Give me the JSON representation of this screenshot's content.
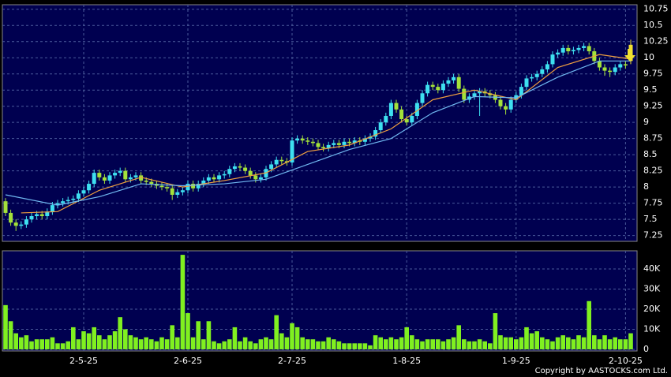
{
  "chart_data": {
    "type": "candlestick",
    "up_color": "#3ee0f0",
    "down_color": "#a4e23a",
    "last_color": "#f0e030",
    "ylim": [
      7.16,
      10.82
    ],
    "yticks": [
      7.25,
      7.5,
      7.75,
      8,
      8.25,
      8.5,
      8.75,
      9,
      9.25,
      9.5,
      9.75,
      10,
      10.25,
      10.5,
      10.75
    ],
    "date_ticks": [
      {
        "index": 15,
        "label": "2-5-25"
      },
      {
        "index": 35,
        "label": "2-6-25"
      },
      {
        "index": 55,
        "label": "2-7-25"
      },
      {
        "index": 77,
        "label": "1-8-25"
      },
      {
        "index": 98,
        "label": "1-9-25"
      },
      {
        "index": 119,
        "label": "2-10-25"
      }
    ],
    "open": [
      7.78,
      7.6,
      7.45,
      7.4,
      7.42,
      7.5,
      7.55,
      7.58,
      7.55,
      7.62,
      7.72,
      7.75,
      7.78,
      7.8,
      7.82,
      7.9,
      7.95,
      8.05,
      8.22,
      8.15,
      8.1,
      8.18,
      8.22,
      8.25,
      8.12,
      8.15,
      8.18,
      8.1,
      8.08,
      8.05,
      8.02,
      8.0,
      7.98,
      7.88,
      7.92,
      7.95,
      8.05,
      7.98,
      8.05,
      8.1,
      8.15,
      8.12,
      8.18,
      8.2,
      8.28,
      8.32,
      8.3,
      8.25,
      8.18,
      8.12,
      8.15,
      8.28,
      8.35,
      8.42,
      8.4,
      8.38,
      8.72,
      8.75,
      8.72,
      8.7,
      8.68,
      8.62,
      8.6,
      8.65,
      8.68,
      8.65,
      8.7,
      8.68,
      8.72,
      8.7,
      8.75,
      8.78,
      8.88,
      9.0,
      9.1,
      9.3,
      9.2,
      9.05,
      9.0,
      9.1,
      9.3,
      9.45,
      9.58,
      9.55,
      9.5,
      9.6,
      9.65,
      9.7,
      9.52,
      9.35,
      9.4,
      9.45,
      9.48,
      9.45,
      9.42,
      9.35,
      9.25,
      9.2,
      9.35,
      9.42,
      9.55,
      9.68,
      9.7,
      9.75,
      9.82,
      9.9,
      10.05,
      10.08,
      10.15,
      10.1,
      10.12,
      10.15,
      10.18,
      10.1,
      9.95,
      9.85,
      9.8,
      9.78,
      9.85,
      9.9,
      9.95
    ],
    "high": [
      7.83,
      7.65,
      7.5,
      7.47,
      7.55,
      7.6,
      7.63,
      7.63,
      7.67,
      7.77,
      7.8,
      7.83,
      7.85,
      7.87,
      7.95,
      8.0,
      8.1,
      8.27,
      8.27,
      8.2,
      8.23,
      8.27,
      8.3,
      8.3,
      8.2,
      8.23,
      8.23,
      8.15,
      8.13,
      8.1,
      8.07,
      8.05,
      8.03,
      7.97,
      8.0,
      8.1,
      8.1,
      8.1,
      8.15,
      8.2,
      8.2,
      8.23,
      8.25,
      8.33,
      8.37,
      8.37,
      8.35,
      8.3,
      8.23,
      8.2,
      8.33,
      8.4,
      8.47,
      8.47,
      8.45,
      8.77,
      8.8,
      8.8,
      8.77,
      8.75,
      8.73,
      8.67,
      8.7,
      8.73,
      8.73,
      8.75,
      8.75,
      8.77,
      8.77,
      8.8,
      8.83,
      8.93,
      9.05,
      9.15,
      9.35,
      9.35,
      9.25,
      9.1,
      9.15,
      9.35,
      9.5,
      9.63,
      9.63,
      9.6,
      9.65,
      9.7,
      9.75,
      9.75,
      9.57,
      9.45,
      9.5,
      9.53,
      9.53,
      9.5,
      9.47,
      9.4,
      9.3,
      9.4,
      9.47,
      9.6,
      9.73,
      9.75,
      9.8,
      9.87,
      9.95,
      10.1,
      10.13,
      10.2,
      10.2,
      10.17,
      10.2,
      10.23,
      10.23,
      10.15,
      10.0,
      9.9,
      9.85,
      9.9,
      9.95,
      9.95,
      10.28
    ],
    "low": [
      7.55,
      7.4,
      7.32,
      7.35,
      7.37,
      7.45,
      7.5,
      7.5,
      7.5,
      7.57,
      7.67,
      7.7,
      7.73,
      7.75,
      7.77,
      7.85,
      7.9,
      8.0,
      8.1,
      8.05,
      8.05,
      8.13,
      8.17,
      8.07,
      8.07,
      8.1,
      8.05,
      8.03,
      8.0,
      7.97,
      7.95,
      7.93,
      7.8,
      7.83,
      7.87,
      7.9,
      7.93,
      7.93,
      8.0,
      8.05,
      8.07,
      8.07,
      8.13,
      8.15,
      8.23,
      8.25,
      8.2,
      8.13,
      8.07,
      8.07,
      8.1,
      8.23,
      8.3,
      8.35,
      8.33,
      8.33,
      8.67,
      8.67,
      8.65,
      8.63,
      8.57,
      8.55,
      8.55,
      8.6,
      8.6,
      8.6,
      8.63,
      8.63,
      8.65,
      8.65,
      8.7,
      8.73,
      8.83,
      8.95,
      9.05,
      9.15,
      9.0,
      8.95,
      8.95,
      9.05,
      9.25,
      9.4,
      9.5,
      9.45,
      9.45,
      9.55,
      9.6,
      9.47,
      9.3,
      9.3,
      9.35,
      9.1,
      9.4,
      9.37,
      9.3,
      9.2,
      9.12,
      9.15,
      9.3,
      9.37,
      9.5,
      9.63,
      9.65,
      9.7,
      9.77,
      9.85,
      10.0,
      10.03,
      10.05,
      10.05,
      10.07,
      10.1,
      10.05,
      9.9,
      9.8,
      9.72,
      9.7,
      9.73,
      9.8,
      9.83,
      9.9
    ],
    "close": [
      7.6,
      7.45,
      7.4,
      7.42,
      7.5,
      7.55,
      7.58,
      7.55,
      7.62,
      7.72,
      7.75,
      7.78,
      7.8,
      7.82,
      7.9,
      7.95,
      8.05,
      8.22,
      8.15,
      8.1,
      8.18,
      8.22,
      8.25,
      8.12,
      8.15,
      8.18,
      8.1,
      8.08,
      8.05,
      8.02,
      8.0,
      7.98,
      7.88,
      7.92,
      7.95,
      8.05,
      7.98,
      8.05,
      8.1,
      8.15,
      8.12,
      8.18,
      8.2,
      8.28,
      8.32,
      8.3,
      8.25,
      8.18,
      8.12,
      8.15,
      8.28,
      8.35,
      8.42,
      8.4,
      8.38,
      8.72,
      8.75,
      8.72,
      8.7,
      8.68,
      8.62,
      8.6,
      8.65,
      8.68,
      8.65,
      8.7,
      8.68,
      8.72,
      8.7,
      8.75,
      8.78,
      8.88,
      9.0,
      9.1,
      9.3,
      9.2,
      9.05,
      9.0,
      9.1,
      9.3,
      9.45,
      9.58,
      9.55,
      9.5,
      9.6,
      9.65,
      9.7,
      9.52,
      9.35,
      9.4,
      9.45,
      9.48,
      9.45,
      9.42,
      9.35,
      9.25,
      9.2,
      9.35,
      9.42,
      9.55,
      9.68,
      9.7,
      9.75,
      9.82,
      9.9,
      10.05,
      10.08,
      10.15,
      10.1,
      10.12,
      10.15,
      10.18,
      10.1,
      9.95,
      9.85,
      9.8,
      9.78,
      9.85,
      9.9,
      9.88,
      10.2
    ],
    "moving_averages": [
      {
        "color": "#f0a040",
        "index": [
          3,
          10,
          18,
          26,
          34,
          42,
          50,
          58,
          66,
          74,
          82,
          90,
          98,
          106,
          114,
          120
        ],
        "values": [
          7.6,
          7.62,
          7.95,
          8.15,
          8.0,
          8.1,
          8.22,
          8.55,
          8.65,
          8.9,
          9.35,
          9.5,
          9.35,
          9.85,
          10.05,
          9.98
        ]
      },
      {
        "color": "#70b8f0",
        "index": [
          0,
          10,
          18,
          26,
          34,
          42,
          50,
          58,
          66,
          74,
          82,
          90,
          98,
          106,
          114,
          120
        ],
        "values": [
          7.88,
          7.72,
          7.85,
          8.05,
          8.02,
          8.05,
          8.12,
          8.35,
          8.58,
          8.75,
          9.15,
          9.4,
          9.38,
          9.7,
          9.95,
          9.95
        ]
      }
    ],
    "volume_color": "#80f020",
    "volume_ylim": [
      -800,
      49000
    ],
    "volume_yticks": [
      0,
      {
        "value": 10000,
        "label": "10K"
      },
      {
        "value": 20000,
        "label": "20K"
      },
      {
        "value": 30000,
        "label": "30K"
      },
      {
        "value": 40000,
        "label": "40K"
      }
    ],
    "volume": [
      22000,
      14000,
      8000,
      6000,
      7000,
      4000,
      5000,
      5000,
      5000,
      6000,
      3000,
      3000,
      4000,
      11000,
      5000,
      9000,
      8000,
      11000,
      7000,
      5000,
      7000,
      9000,
      16000,
      10000,
      7000,
      6000,
      5000,
      6000,
      5000,
      4000,
      6000,
      5000,
      12000,
      6000,
      47000,
      18000,
      6000,
      14000,
      5000,
      14000,
      4000,
      3000,
      4000,
      5000,
      11000,
      4000,
      6000,
      4000,
      3000,
      5000,
      6000,
      5000,
      17000,
      8000,
      6000,
      13000,
      11000,
      6000,
      5000,
      5000,
      4000,
      4000,
      6000,
      5000,
      4000,
      3000,
      3000,
      3000,
      3000,
      3000,
      2000,
      7000,
      6000,
      5000,
      6000,
      5000,
      6000,
      11000,
      7000,
      5000,
      4000,
      5000,
      5000,
      5000,
      4000,
      5000,
      6000,
      12000,
      5000,
      4000,
      4000,
      5000,
      4000,
      3000,
      18000,
      7000,
      6000,
      6000,
      5000,
      6000,
      11000,
      8000,
      9000,
      6000,
      5000,
      4000,
      6000,
      7000,
      6000,
      5000,
      7000,
      6000,
      24000,
      7000,
      5000,
      7000,
      5000,
      6000,
      5000,
      5000,
      8000
    ]
  },
  "copyright": "Copyright by AASTOCKS.com Ltd."
}
